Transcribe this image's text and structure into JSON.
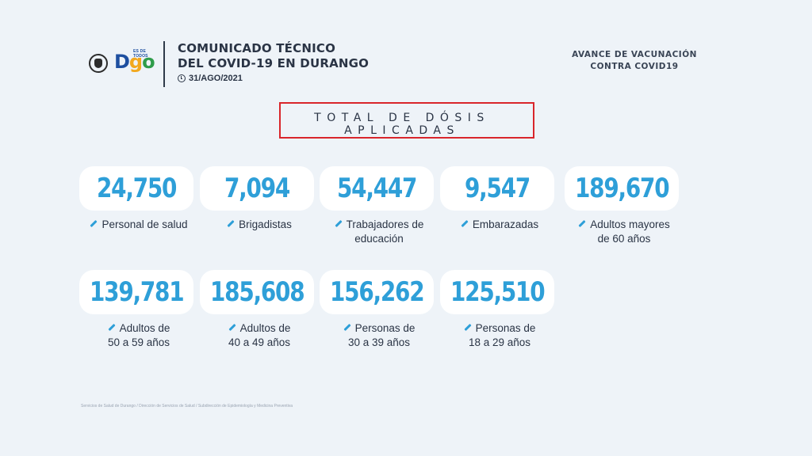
{
  "header": {
    "brand_word": [
      "D",
      "g",
      "o"
    ],
    "brand_tag": "ES DE TODOS",
    "title_line1": "COMUNICADO TÉCNICO",
    "title_line2": "DEL COVID-19 EN DURANGO",
    "date": "31/AGO/2021"
  },
  "top_right": {
    "line1": "AVANCE DE VACUNACIÓN",
    "line2": "CONTRA COVID19"
  },
  "section_title": "TOTAL DE DÓSIS APLICADAS",
  "cards": [
    {
      "value": "24,750",
      "label1": "Personal de salud",
      "label2": ""
    },
    {
      "value": "7,094",
      "label1": "Brigadistas",
      "label2": ""
    },
    {
      "value": "54,447",
      "label1": "Trabajadores de",
      "label2": "educación"
    },
    {
      "value": "9,547",
      "label1": "Embarazadas",
      "label2": ""
    },
    {
      "value": "189,670",
      "label1": "Adultos mayores",
      "label2": "de 60 años"
    },
    {
      "value": "139,781",
      "label1": "Adultos de",
      "label2": "50 a 59 años"
    },
    {
      "value": "185,608",
      "label1": "Adultos de",
      "label2": "40 a 49 años"
    },
    {
      "value": "156,262",
      "label1": "Personas de",
      "label2": "30 a 39 años"
    },
    {
      "value": "125,510",
      "label1": "Personas de",
      "label2": "18 a 29 años"
    }
  ],
  "footer": "Servicios de Salud de Durango / Dirección de Servicios de Salud / Subdirección de Epidemiología y Medicina Preventiva",
  "colors": {
    "background": "#eef3f8",
    "number_blue": "#2e9fd8",
    "highlight_red": "#d9252b",
    "text_dark": "#2a3445"
  },
  "icons": [
    "state-seal-icon",
    "clock-icon",
    "syringe-icon"
  ]
}
